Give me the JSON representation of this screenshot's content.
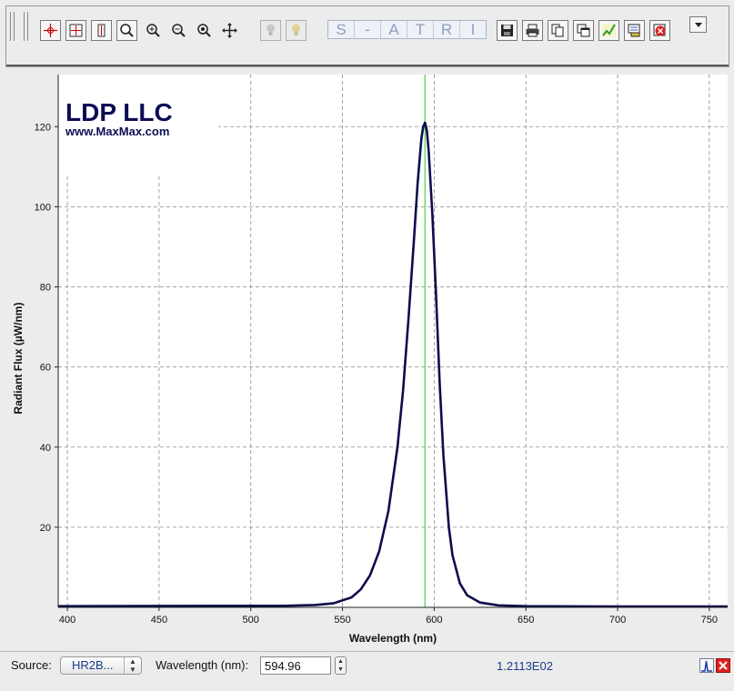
{
  "toolbar": {
    "buttons": [
      {
        "name": "crosshair-tool-button",
        "icon": "crosshair-icon"
      },
      {
        "name": "zoom-box-tool-button",
        "icon": "zoom-box-icon"
      },
      {
        "name": "zoom-y-tool-button",
        "icon": "zoom-vertical-icon"
      },
      {
        "name": "zoom-fit-button",
        "icon": "zoom-fit-icon"
      },
      {
        "name": "zoom-in-button",
        "icon": "zoom-in-icon"
      },
      {
        "name": "zoom-out-button",
        "icon": "zoom-out-icon"
      },
      {
        "name": "zoom-reset-button",
        "icon": "zoom-reset-icon"
      },
      {
        "name": "pan-button",
        "icon": "pan-icon"
      },
      {
        "name": "lamp-off-button",
        "icon": "lamp-icon"
      },
      {
        "name": "lamp-on-button",
        "icon": "lamp-icon"
      },
      {
        "name": "save-button",
        "icon": "floppy-disk-icon"
      },
      {
        "name": "print-button",
        "icon": "printer-icon"
      },
      {
        "name": "copy-button",
        "icon": "copy-icon"
      },
      {
        "name": "copy-window-button",
        "icon": "copy-window-icon"
      },
      {
        "name": "chart-settings-button",
        "icon": "chart-icon"
      },
      {
        "name": "export-button",
        "icon": "export-icon"
      },
      {
        "name": "delete-button",
        "icon": "delete-icon"
      },
      {
        "name": "more-options-button",
        "icon": "chevron-down-icon"
      }
    ],
    "mode_letters": [
      "S",
      "-",
      "A",
      "T",
      "R",
      "I"
    ]
  },
  "logo": {
    "company": "LDP LLC",
    "website": "www.MaxMax.com"
  },
  "chart_data": {
    "type": "line",
    "xlabel": "Wavelength (nm)",
    "ylabel": "Radiant Flux (µW/nm)",
    "xlim": [
      395,
      760
    ],
    "ylim": [
      0,
      133
    ],
    "x_ticks": [
      400,
      450,
      500,
      550,
      600,
      650,
      700,
      750
    ],
    "y_ticks": [
      20,
      40,
      60,
      80,
      100,
      120
    ],
    "grid": true,
    "cursor_x": 594.96,
    "colors": {
      "series": "#0d0d4d",
      "cursor": "#22cc22",
      "grid": "#8c8c8c"
    },
    "series": [
      {
        "x": [
          395,
          520,
          535,
          545,
          555,
          560,
          565,
          570,
          575,
          580,
          583,
          586,
          589,
          591,
          593,
          594,
          595,
          596,
          597,
          599,
          601,
          603,
          605,
          608,
          610,
          614,
          618,
          625,
          635,
          650,
          700,
          760
        ],
        "values": [
          0.3,
          0.4,
          0.6,
          1,
          2.5,
          4.5,
          8,
          14,
          24,
          40,
          54,
          72,
          92,
          106,
          117,
          120,
          121,
          119,
          114,
          98,
          78,
          56,
          38,
          20,
          13,
          6,
          3,
          1.2,
          0.5,
          0.3,
          0.2,
          0.2
        ]
      }
    ]
  },
  "status": {
    "source_label": "Source:",
    "source_value": "HR2B...",
    "wavelength_label": "Wavelength (nm):",
    "wavelength_value": "594.96",
    "readout": "1.2113E02"
  }
}
